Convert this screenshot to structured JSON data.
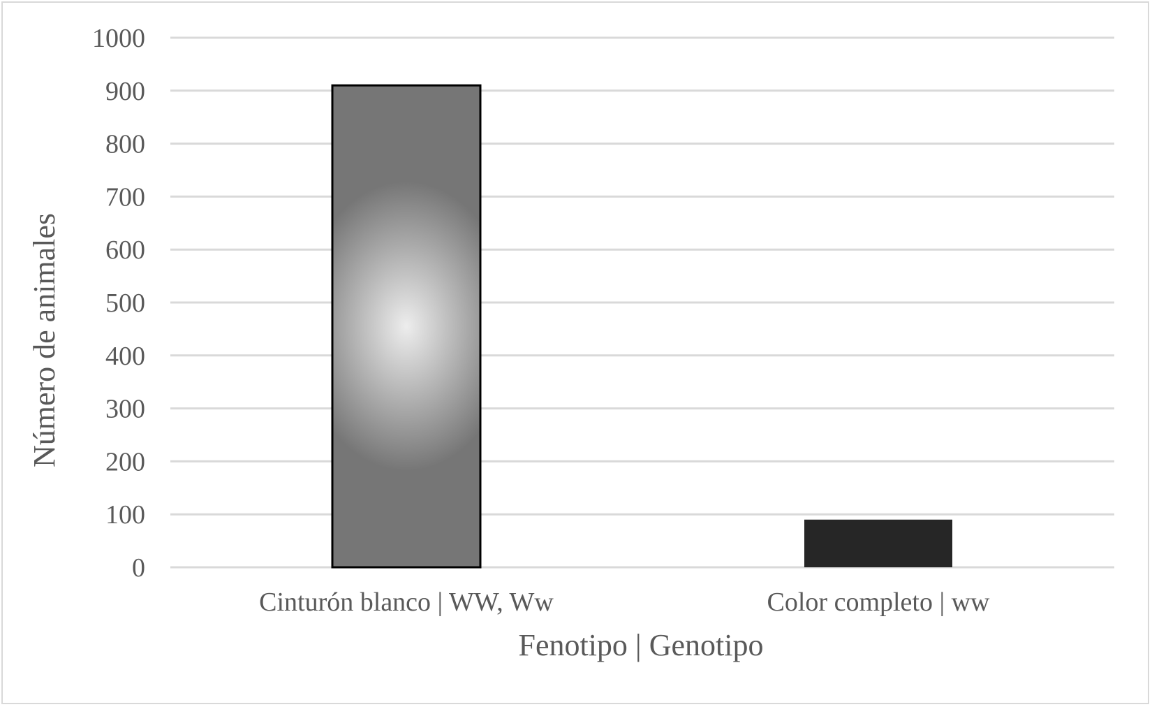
{
  "chart_data": {
    "type": "bar",
    "categories": [
      "Cinturón blanco | WW, Ww",
      "Color completo | ww"
    ],
    "values": [
      910,
      90
    ],
    "xlabel": "Fenotipo | Genotipo",
    "ylabel": "Número de animales",
    "ylim": [
      0,
      1000
    ],
    "yticks": [
      0,
      100,
      200,
      300,
      400,
      500,
      600,
      700,
      800,
      900,
      1000
    ],
    "grid": true,
    "legend": "none",
    "bar_styles": [
      {
        "fill": "radial-gradient-gray",
        "center_color": "#ededed",
        "edge_color": "#767676",
        "stroke": "#000000"
      },
      {
        "fill": "solid",
        "color": "#262626",
        "stroke": "none"
      }
    ],
    "gridline_color": "#d9d9d9",
    "text_color": "#595959"
  }
}
